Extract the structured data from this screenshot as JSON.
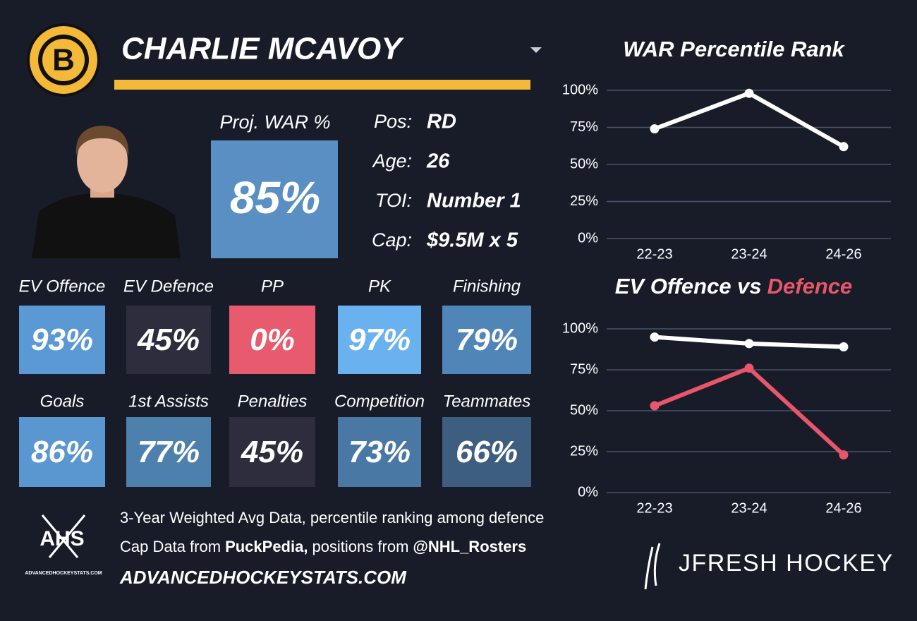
{
  "header": {
    "name": "CHARLIE MCAVOY",
    "logo_letter": "B"
  },
  "projection": {
    "label": "Proj. WAR %",
    "value": "85%",
    "color": "#5a8fc4"
  },
  "info": [
    {
      "label": "Pos:",
      "value": "RD"
    },
    {
      "label": "Age:",
      "value": "26"
    },
    {
      "label": "TOI:",
      "value": "Number 1"
    },
    {
      "label": "Cap:",
      "value": "$9.5M x 5"
    }
  ],
  "tiles": [
    [
      {
        "label": "EV Offence",
        "value": "93%",
        "color": "#5a99d4"
      },
      {
        "label": "EV Defence",
        "value": "45%",
        "color": "#2e2d3e"
      },
      {
        "label": "PP",
        "value": "0%",
        "color": "#e85a6e"
      },
      {
        "label": "PK",
        "value": "97%",
        "color": "#6ab1ef"
      },
      {
        "label": "Finishing",
        "value": "79%",
        "color": "#5085b8"
      }
    ],
    [
      {
        "label": "Goals",
        "value": "86%",
        "color": "#5a96cf"
      },
      {
        "label": "1st Assists",
        "value": "77%",
        "color": "#4e80ae"
      },
      {
        "label": "Penalties",
        "value": "45%",
        "color": "#2e2d3e"
      },
      {
        "label": "Competition",
        "value": "73%",
        "color": "#4a78a4"
      },
      {
        "label": "Teammates",
        "value": "66%",
        "color": "#3e5e80"
      }
    ]
  ],
  "footer": {
    "logo_text": "AHS",
    "logo_caption": "ADVANCEDHOCKEYSTATS.COM",
    "line1": "3-Year Weighted Avg Data, percentile ranking among defence",
    "line2": [
      "Cap Data from",
      "PuckPedia,",
      "positions from",
      "@NHL_Rosters"
    ],
    "site": "ADVANCEDHOCKEYSTATS.COM",
    "brand": "JFRESH HOCKEY"
  },
  "chart_data": [
    {
      "type": "line",
      "title": "WAR Percentile Rank",
      "categories": [
        "22-23",
        "23-24",
        "24-26"
      ],
      "series": [
        {
          "color": "#ffffff",
          "values": [
            74,
            98,
            62
          ]
        }
      ],
      "ylim": [
        0,
        100
      ],
      "yticks": [
        {
          "value": 0,
          "label": "0%"
        },
        {
          "value": 25,
          "label": "25%"
        },
        {
          "value": 50,
          "label": "50%"
        },
        {
          "value": 75,
          "label": "75%"
        },
        {
          "value": 100,
          "label": "100%"
        }
      ],
      "grid": true
    },
    {
      "type": "line",
      "title_parts": [
        {
          "text": "EV Offence vs",
          "color": "#ffffff"
        },
        {
          "text": "Defence",
          "color": "#e8566a"
        }
      ],
      "categories": [
        "22-23",
        "23-24",
        "24-26"
      ],
      "series": [
        {
          "color": "#ffffff",
          "values": [
            95,
            91,
            89
          ]
        },
        {
          "color": "#e8566a",
          "values": [
            53,
            76,
            23
          ]
        }
      ],
      "ylim": [
        0,
        100
      ],
      "yticks": [
        {
          "value": 0,
          "label": "0%"
        },
        {
          "value": 25,
          "label": "25%"
        },
        {
          "value": 50,
          "label": "50%"
        },
        {
          "value": 75,
          "label": "75%"
        },
        {
          "value": 100,
          "label": "100%"
        }
      ],
      "grid": true
    }
  ]
}
